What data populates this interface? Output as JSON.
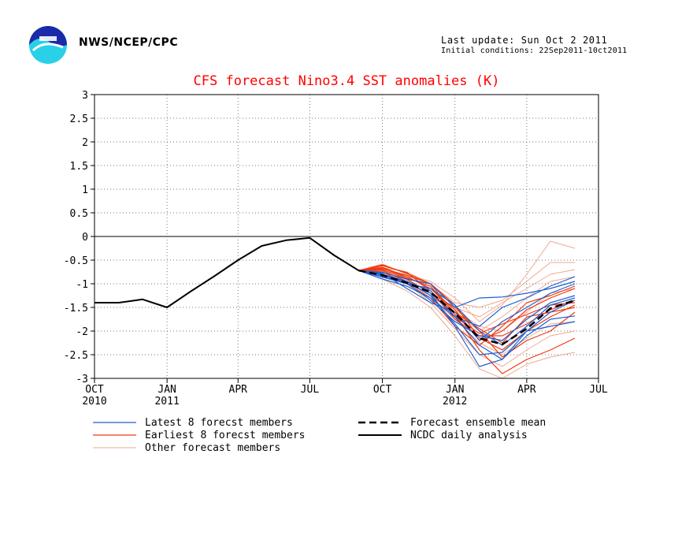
{
  "header": {
    "agency": "NWS/NCEP/CPC",
    "last_update": "Last update: Sun Oct 2 2011",
    "initial_conditions": "Initial conditions: 22Sep2011-10ct2011"
  },
  "colors": {
    "title": "#ff0000",
    "latest": "#1f5fd0",
    "earliest": "#ee3a10",
    "other": "#f0a890",
    "mean": "#000000",
    "analysis": "#000000",
    "logo_blue": "#1a2aa8",
    "logo_cyan": "#2ad0e8"
  },
  "chart_data": {
    "type": "line",
    "title": "CFS forecast Nino3.4 SST anomalies (K)",
    "ylim": [
      -3,
      3
    ],
    "y_ticks": [
      3,
      2.5,
      2,
      1.5,
      1,
      0.5,
      0,
      -0.5,
      -1,
      -1.5,
      -2,
      -2.5,
      -3
    ],
    "y_tick_labels": [
      "3",
      "2.5",
      "2",
      "1.5",
      "1",
      "0.5",
      "0",
      "-0.5",
      "-1",
      "-1.5",
      "-2",
      "-2.5",
      "-3"
    ],
    "x_ticks": [
      "2010-10",
      "2011-01",
      "2011-04",
      "2011-07",
      "2011-10",
      "2012-01",
      "2012-04",
      "2012-07"
    ],
    "x_tick_labels": [
      "OCT",
      "JAN",
      "APR",
      "JUL",
      "OCT",
      "JAN",
      "APR",
      "JUL"
    ],
    "x_year_labels": [
      {
        "x": "2010-10",
        "label": "2010"
      },
      {
        "x": "2011-01",
        "label": "2011"
      },
      {
        "x": "2012-01",
        "label": "2012"
      }
    ],
    "grid": true,
    "legend": [
      {
        "label": "Latest 8 forecst members",
        "series": "latest"
      },
      {
        "label": "Earliest 8 forecst members",
        "series": "earliest"
      },
      {
        "label": "Other forecast members",
        "series": "other"
      },
      {
        "label": "Forecast ensemble mean",
        "series": "mean"
      },
      {
        "label": "NCDC daily analysis",
        "series": "analysis"
      }
    ],
    "forecast_x": [
      "2011-09",
      "2011-10",
      "2011-11",
      "2011-12",
      "2012-01",
      "2012-02",
      "2012-03",
      "2012-04",
      "2012-05",
      "2012-06"
    ],
    "series": [
      {
        "group": "analysis",
        "x": [
          "2010-10",
          "2010-11",
          "2010-12",
          "2011-01",
          "2011-02",
          "2011-03",
          "2011-04",
          "2011-05",
          "2011-06",
          "2011-07",
          "2011-08",
          "2011-09"
        ],
        "values": [
          -1.4,
          -1.4,
          -1.33,
          -1.5,
          -1.15,
          -0.85,
          -0.5,
          -0.2,
          -0.08,
          -0.03,
          -0.4,
          -0.72
        ]
      },
      {
        "group": "mean",
        "values": [
          -0.72,
          -0.82,
          -0.98,
          -1.18,
          -1.62,
          -2.15,
          -2.28,
          -1.95,
          -1.52,
          -1.35
        ]
      },
      {
        "group": "latest",
        "values": [
          -0.72,
          -0.85,
          -1.0,
          -1.2,
          -1.9,
          -2.75,
          -2.6,
          -2.1,
          -1.75,
          -1.68
        ]
      },
      {
        "group": "latest",
        "values": [
          -0.72,
          -0.8,
          -0.95,
          -1.25,
          -1.85,
          -2.5,
          -2.45,
          -2.0,
          -1.9,
          -1.8
        ]
      },
      {
        "group": "latest",
        "values": [
          -0.72,
          -0.78,
          -1.1,
          -1.4,
          -1.6,
          -2.2,
          -1.8,
          -1.5,
          -1.2,
          -1.0
        ]
      },
      {
        "group": "latest",
        "values": [
          -0.72,
          -0.76,
          -0.9,
          -1.0,
          -1.5,
          -1.3,
          -1.28,
          -1.2,
          -1.1,
          -0.95
        ]
      },
      {
        "group": "latest",
        "values": [
          -0.72,
          -0.9,
          -1.05,
          -1.3,
          -1.7,
          -2.3,
          -2.6,
          -2.0,
          -1.6,
          -1.35
        ]
      },
      {
        "group": "latest",
        "values": [
          -0.72,
          -0.82,
          -0.98,
          -1.35,
          -1.8,
          -2.1,
          -2.2,
          -1.75,
          -1.4,
          -1.25
        ]
      },
      {
        "group": "latest",
        "values": [
          -0.72,
          -0.86,
          -1.0,
          -1.1,
          -1.45,
          -2.0,
          -2.3,
          -1.9,
          -1.45,
          -1.3
        ]
      },
      {
        "group": "latest",
        "values": [
          -0.72,
          -0.8,
          -0.95,
          -1.15,
          -1.7,
          -1.9,
          -1.5,
          -1.3,
          -1.05,
          -0.85
        ]
      },
      {
        "group": "earliest",
        "values": [
          -0.72,
          -0.6,
          -0.78,
          -1.0,
          -1.65,
          -2.4,
          -2.9,
          -2.6,
          -2.4,
          -2.15
        ]
      },
      {
        "group": "earliest",
        "values": [
          -0.72,
          -0.7,
          -0.9,
          -1.2,
          -1.5,
          -2.0,
          -2.55,
          -2.2,
          -2.0,
          -1.6
        ]
      },
      {
        "group": "earliest",
        "values": [
          -0.72,
          -0.65,
          -0.85,
          -1.1,
          -1.55,
          -2.2,
          -2.0,
          -1.55,
          -1.3,
          -1.1
        ]
      },
      {
        "group": "earliest",
        "values": [
          -0.72,
          -0.75,
          -1.0,
          -1.3,
          -1.9,
          -2.3,
          -1.9,
          -1.4,
          -1.25,
          -1.05
        ]
      },
      {
        "group": "earliest",
        "values": [
          -0.72,
          -0.68,
          -0.82,
          -1.0,
          -1.45,
          -2.15,
          -2.4,
          -2.0,
          -1.7,
          -1.45
        ]
      },
      {
        "group": "earliest",
        "values": [
          -0.72,
          -0.62,
          -0.76,
          -1.15,
          -1.75,
          -2.1,
          -2.1,
          -1.85,
          -1.55,
          -1.35
        ]
      },
      {
        "group": "earliest",
        "values": [
          -0.72,
          -0.72,
          -0.95,
          -1.25,
          -1.6,
          -1.95,
          -2.25,
          -1.7,
          -1.6,
          -1.5
        ]
      },
      {
        "group": "earliest",
        "values": [
          -0.72,
          -0.66,
          -0.88,
          -1.05,
          -1.7,
          -2.05,
          -1.85,
          -1.65,
          -1.45,
          -1.4
        ]
      },
      {
        "group": "other",
        "values": [
          -0.72,
          -0.58,
          -0.8,
          -0.95,
          -1.3,
          -1.8,
          -1.45,
          -0.8,
          -0.1,
          -0.25
        ]
      },
      {
        "group": "other",
        "values": [
          -0.72,
          -0.66,
          -0.75,
          -1.0,
          -1.4,
          -1.5,
          -1.35,
          -0.95,
          -0.55,
          -0.55
        ]
      },
      {
        "group": "other",
        "values": [
          -0.72,
          -0.9,
          -1.15,
          -1.5,
          -2.1,
          -2.8,
          -3.0,
          -2.7,
          -2.55,
          -2.45
        ]
      },
      {
        "group": "other",
        "values": [
          -0.72,
          -0.74,
          -0.92,
          -1.2,
          -1.5,
          -1.7,
          -1.4,
          -1.1,
          -0.8,
          -0.7
        ]
      },
      {
        "group": "other",
        "values": [
          -0.72,
          -0.8,
          -1.0,
          -1.4,
          -1.95,
          -2.5,
          -2.75,
          -2.4,
          -2.1,
          -2.0
        ]
      },
      {
        "group": "other",
        "values": [
          -0.72,
          -0.7,
          -0.85,
          -1.1,
          -1.6,
          -2.0,
          -1.7,
          -1.3,
          -0.95,
          -0.85
        ]
      },
      {
        "group": "other",
        "values": [
          -0.72,
          -0.76,
          -0.95,
          -1.3,
          -1.75,
          -2.25,
          -2.5,
          -2.15,
          -1.85,
          -1.8
        ]
      },
      {
        "group": "other",
        "values": [
          -0.72,
          -0.68,
          -0.82,
          -1.15,
          -1.55,
          -1.9,
          -2.0,
          -1.6,
          -1.2,
          -1.1
        ]
      }
    ]
  }
}
